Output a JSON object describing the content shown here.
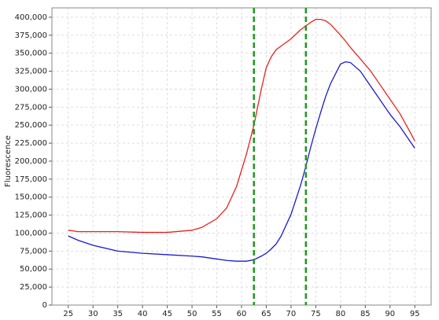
{
  "chart_data": {
    "type": "line",
    "y_label": "Fluorescence",
    "x": [
      25,
      27,
      30,
      35,
      40,
      45,
      50,
      52,
      55,
      57,
      59,
      61,
      62.5,
      64,
      65,
      66,
      67,
      68,
      70,
      72,
      73,
      74,
      75,
      76,
      77,
      78,
      80,
      81,
      82,
      84,
      86,
      88,
      90,
      92,
      94,
      95
    ],
    "series": [
      {
        "color": "#e8221e",
        "values": [
          104000,
          102000,
          102000,
          102000,
          101000,
          101000,
          104000,
          108000,
          120000,
          135000,
          165000,
          210000,
          250000,
          300000,
          330000,
          345000,
          355000,
          360000,
          370000,
          383000,
          388000,
          393000,
          397000,
          397000,
          395000,
          390000,
          375000,
          367000,
          358000,
          342000,
          326000,
          306000,
          286000,
          266000,
          241000,
          228000
        ]
      },
      {
        "color": "#1a1ad0",
        "values": [
          96000,
          90000,
          83000,
          75000,
          72000,
          70000,
          68000,
          67000,
          64000,
          62000,
          61000,
          61000,
          63000,
          68000,
          72000,
          78000,
          85000,
          96000,
          126000,
          168000,
          193000,
          220000,
          245000,
          268000,
          290000,
          308000,
          335000,
          338000,
          337000,
          325000,
          305000,
          285000,
          265000,
          248000,
          228000,
          218000
        ]
      }
    ],
    "vlines": [
      62.5,
      73
    ],
    "vline_color": "#1e9a1e",
    "xlim": [
      21.7,
      98.3
    ],
    "xticks": [
      25,
      30,
      35,
      40,
      45,
      50,
      55,
      60,
      65,
      70,
      75,
      80,
      85,
      90,
      95
    ],
    "ylim": [
      0,
      413000
    ],
    "yticks": [
      0,
      {
        "value": 25000,
        "label": "25,000"
      },
      {
        "value": 50000,
        "label": "50,000"
      },
      {
        "value": 75000,
        "label": "75,000"
      },
      {
        "value": 100000,
        "label": "100,000"
      },
      {
        "value": 125000,
        "label": "125,000"
      },
      {
        "value": 150000,
        "label": "150,000"
      },
      {
        "value": 175000,
        "label": "175,000"
      },
      {
        "value": 200000,
        "label": "200,000"
      },
      {
        "value": 225000,
        "label": "225,000"
      },
      {
        "value": 250000,
        "label": "250,000"
      },
      {
        "value": 275000,
        "label": "275,000"
      },
      {
        "value": 300000,
        "label": "300,000"
      },
      {
        "value": 325000,
        "label": "325,000"
      },
      {
        "value": 350000,
        "label": "350,000"
      },
      {
        "value": 375000,
        "label": "375,000"
      },
      {
        "value": 400000,
        "label": "400,000"
      }
    ],
    "grid": true
  }
}
